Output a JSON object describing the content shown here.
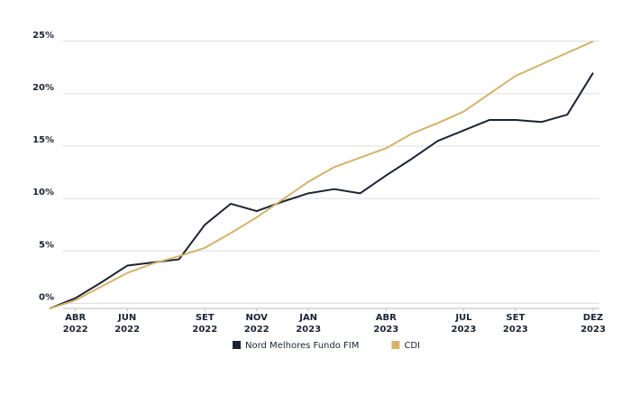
{
  "chart_data": {
    "type": "line",
    "x": [
      "2022-03",
      "2022-04",
      "2022-05",
      "2022-06",
      "2022-07",
      "2022-08",
      "2022-09",
      "2022-10",
      "2022-11",
      "2022-12",
      "2023-01",
      "2023-02",
      "2023-03",
      "2023-04",
      "2023-05",
      "2023-06",
      "2023-07",
      "2023-08",
      "2023-09",
      "2023-10",
      "2023-11",
      "2023-12"
    ],
    "series": [
      {
        "name": "Nord Melhores Fundo FIM",
        "color": "#1c2333",
        "values": [
          -0.5,
          0.5,
          2.0,
          3.6,
          3.9,
          4.2,
          7.5,
          9.5,
          8.8,
          9.7,
          10.5,
          10.9,
          10.5,
          12.2,
          13.8,
          15.5,
          16.5,
          17.5,
          17.5,
          17.3,
          18.0,
          22.0
        ]
      },
      {
        "name": "CDI",
        "color": "#d4b36a",
        "values": [
          -0.5,
          0.3,
          1.6,
          2.9,
          3.8,
          4.5,
          5.3,
          6.7,
          8.2,
          9.9,
          11.6,
          13.0,
          13.9,
          14.8,
          16.2,
          17.2,
          18.3,
          20.0,
          21.7,
          22.8,
          23.9,
          25.0
        ]
      }
    ],
    "xlim": [
      "2022-03",
      "2023-12"
    ],
    "xticks": [
      {
        "value": "2022-04",
        "label": [
          "ABR",
          "2022"
        ]
      },
      {
        "value": "2022-06",
        "label": [
          "JUN",
          "2022"
        ]
      },
      {
        "value": "2022-09",
        "label": [
          "SET",
          "2022"
        ]
      },
      {
        "value": "2022-11",
        "label": [
          "NOV",
          "2022"
        ]
      },
      {
        "value": "2023-01",
        "label": [
          "JAN",
          "2023"
        ]
      },
      {
        "value": "2023-04",
        "label": [
          "ABR",
          "2023"
        ]
      },
      {
        "value": "2023-07",
        "label": [
          "JUL",
          "2023"
        ]
      },
      {
        "value": "2023-09",
        "label": [
          "SET",
          "2023"
        ]
      },
      {
        "value": "2023-12",
        "label": [
          "DEZ",
          "2023"
        ]
      }
    ],
    "ylim": [
      -1,
      25.5
    ],
    "yticks": [
      {
        "value": 0,
        "label": "0%"
      },
      {
        "value": 5,
        "label": "5%"
      },
      {
        "value": 10,
        "label": "10%"
      },
      {
        "value": 15,
        "label": "15%"
      },
      {
        "value": 20,
        "label": "20%"
      },
      {
        "value": 25,
        "label": "25%"
      }
    ],
    "grid": true,
    "legend": "bottom"
  }
}
